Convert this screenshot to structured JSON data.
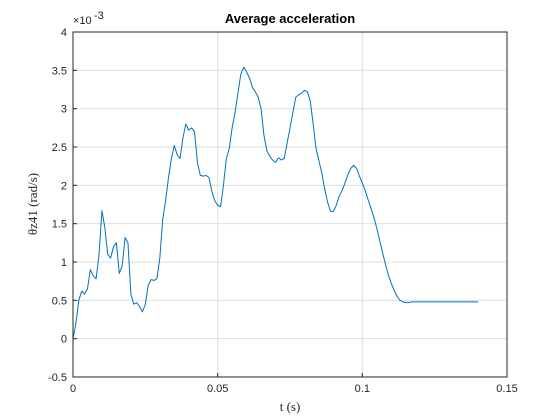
{
  "chart_data": {
    "type": "line",
    "title": "Average acceleration",
    "xlabel": "t (s)",
    "ylabel": "θz41 (rad/s)",
    "y_exponent_label": "×10",
    "y_exponent_power": "-3",
    "y_scale_multiplier": 0.001,
    "xlim": [
      0,
      0.15
    ],
    "ylim": [
      -0.5,
      4
    ],
    "x_ticks": [
      0,
      0.05,
      0.1,
      0.15
    ],
    "x_tick_labels": [
      "0",
      "0.05",
      "0.1",
      "0.15"
    ],
    "y_ticks": [
      -0.5,
      0,
      0.5,
      1,
      1.5,
      2,
      2.5,
      3,
      3.5,
      4
    ],
    "y_tick_labels": [
      "-0.5",
      "0",
      "0.5",
      "1",
      "1.5",
      "2",
      "2.5",
      "3",
      "3.5",
      "4"
    ],
    "grid": true,
    "line_color": "#0072bd",
    "series": [
      {
        "name": "",
        "x": [
          0,
          0.001,
          0.002,
          0.003,
          0.004,
          0.005,
          0.006,
          0.007,
          0.008,
          0.009,
          0.01,
          0.011,
          0.012,
          0.013,
          0.014,
          0.015,
          0.016,
          0.017,
          0.018,
          0.019,
          0.02,
          0.021,
          0.022,
          0.023,
          0.024,
          0.025,
          0.026,
          0.027,
          0.028,
          0.029,
          0.03,
          0.031,
          0.032,
          0.033,
          0.034,
          0.035,
          0.036,
          0.037,
          0.038,
          0.039,
          0.04,
          0.041,
          0.042,
          0.043,
          0.044,
          0.045,
          0.046,
          0.047,
          0.048,
          0.049,
          0.05,
          0.051,
          0.052,
          0.053,
          0.054,
          0.055,
          0.056,
          0.057,
          0.058,
          0.059,
          0.06,
          0.061,
          0.062,
          0.063,
          0.064,
          0.065,
          0.066,
          0.067,
          0.068,
          0.069,
          0.07,
          0.071,
          0.072,
          0.073,
          0.074,
          0.075,
          0.076,
          0.077,
          0.078,
          0.079,
          0.08,
          0.081,
          0.082,
          0.083,
          0.084,
          0.085,
          0.086,
          0.087,
          0.088,
          0.089,
          0.09,
          0.091,
          0.092,
          0.093,
          0.094,
          0.095,
          0.096,
          0.097,
          0.098,
          0.099,
          0.1,
          0.101,
          0.102,
          0.103,
          0.104,
          0.105,
          0.106,
          0.107,
          0.108,
          0.109,
          0.11,
          0.111,
          0.112,
          0.113,
          0.114,
          0.115,
          0.116,
          0.117,
          0.118,
          0.119,
          0.12,
          0.121,
          0.122,
          0.123,
          0.124,
          0.125,
          0.126,
          0.127,
          0.128,
          0.129,
          0.13,
          0.131,
          0.132,
          0.133,
          0.134,
          0.135,
          0.136,
          0.137,
          0.138,
          0.139,
          0.14
        ],
        "y": [
          0.0,
          0.2,
          0.5,
          0.62,
          0.58,
          0.65,
          0.9,
          0.82,
          0.78,
          1.1,
          1.67,
          1.45,
          1.1,
          1.05,
          1.2,
          1.25,
          0.85,
          0.95,
          1.32,
          1.25,
          0.58,
          0.45,
          0.47,
          0.42,
          0.35,
          0.45,
          0.7,
          0.77,
          0.76,
          0.78,
          1.05,
          1.55,
          1.8,
          2.1,
          2.35,
          2.52,
          2.4,
          2.35,
          2.62,
          2.8,
          2.72,
          2.75,
          2.7,
          2.3,
          2.13,
          2.12,
          2.13,
          2.1,
          1.92,
          1.8,
          1.74,
          1.72,
          2.0,
          2.35,
          2.48,
          2.75,
          2.95,
          3.2,
          3.45,
          3.54,
          3.48,
          3.4,
          3.28,
          3.22,
          3.15,
          3.0,
          2.65,
          2.45,
          2.38,
          2.33,
          2.3,
          2.36,
          2.33,
          2.35,
          2.55,
          2.75,
          2.95,
          3.15,
          3.18,
          3.2,
          3.24,
          3.22,
          3.1,
          2.8,
          2.48,
          2.32,
          2.16,
          1.95,
          1.78,
          1.66,
          1.66,
          1.74,
          1.86,
          1.93,
          2.03,
          2.14,
          2.22,
          2.26,
          2.22,
          2.12,
          2.03,
          1.93,
          1.81,
          1.7,
          1.58,
          1.44,
          1.28,
          1.12,
          0.97,
          0.83,
          0.72,
          0.63,
          0.55,
          0.5,
          0.48,
          0.47,
          0.47,
          0.48,
          0.48,
          0.48,
          0.48,
          0.48,
          0.48,
          0.48,
          0.48,
          0.48,
          0.48,
          0.48,
          0.48,
          0.48,
          0.48,
          0.48,
          0.48,
          0.48,
          0.48,
          0.48,
          0.48,
          0.48,
          0.48,
          0.48,
          0.48
        ]
      }
    ]
  }
}
